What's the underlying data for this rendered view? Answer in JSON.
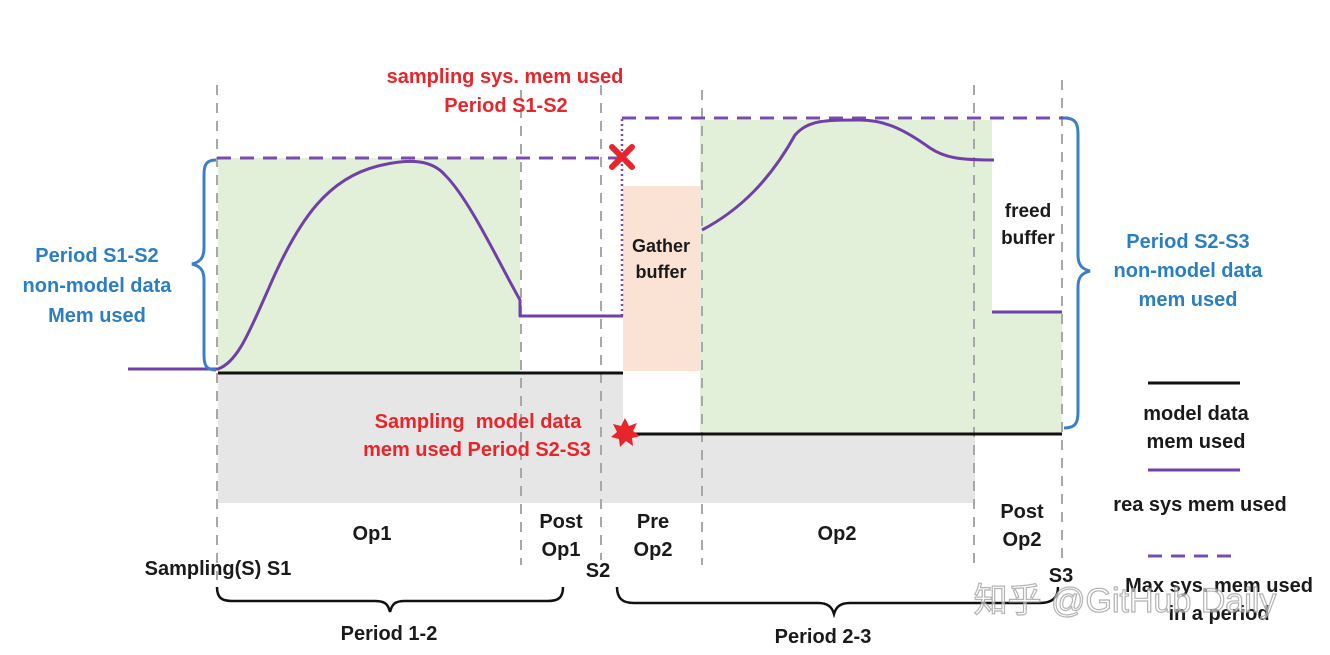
{
  "annotations": {
    "sampling_sys_mem_line1": "sampling sys. mem used",
    "sampling_sys_mem_line2": "Period S1-S2",
    "left_brace_line1": "Period S1-S2",
    "left_brace_line2": "non-model data",
    "left_brace_line3": "Mem used",
    "right_brace_line1": "Period S2-S3",
    "right_brace_line2": "non-model data",
    "right_brace_line3": "mem used",
    "sampling_model_line1": "Sampling  model data",
    "sampling_model_line2": "mem used Period S2-S3",
    "gather_line1": "Gather",
    "gather_line2": "buffer",
    "freed_line1": "freed",
    "freed_line2": "buffer"
  },
  "phases": {
    "op1": "Op1",
    "post_op1_line1": "Post",
    "post_op1_line2": "Op1",
    "pre_op2_line1": "Pre",
    "pre_op2_line2": "Op2",
    "op2": "Op2",
    "post_op2_line1": "Post",
    "post_op2_line2": "Op2"
  },
  "sampling_points": {
    "s1": "Sampling(S) S1",
    "s2": "S2",
    "s3": "S3"
  },
  "periods": {
    "p12": "Period 1-2",
    "p23": "Period 2-3"
  },
  "legend": {
    "model_line1": "model data",
    "model_line2": "mem used",
    "real_sys": "rea sys mem used",
    "max_line1": "Max sys. mem used",
    "max_line2": "in a period"
  },
  "watermark": "知乎 @GitHub Daily",
  "colors": {
    "green_area": "#e3f0d9",
    "gray_area": "#e6e6e6",
    "peach_area": "#fae3d5",
    "purple": "#7040a8",
    "red": "#e8252a",
    "blue": "#2a7fc4"
  }
}
